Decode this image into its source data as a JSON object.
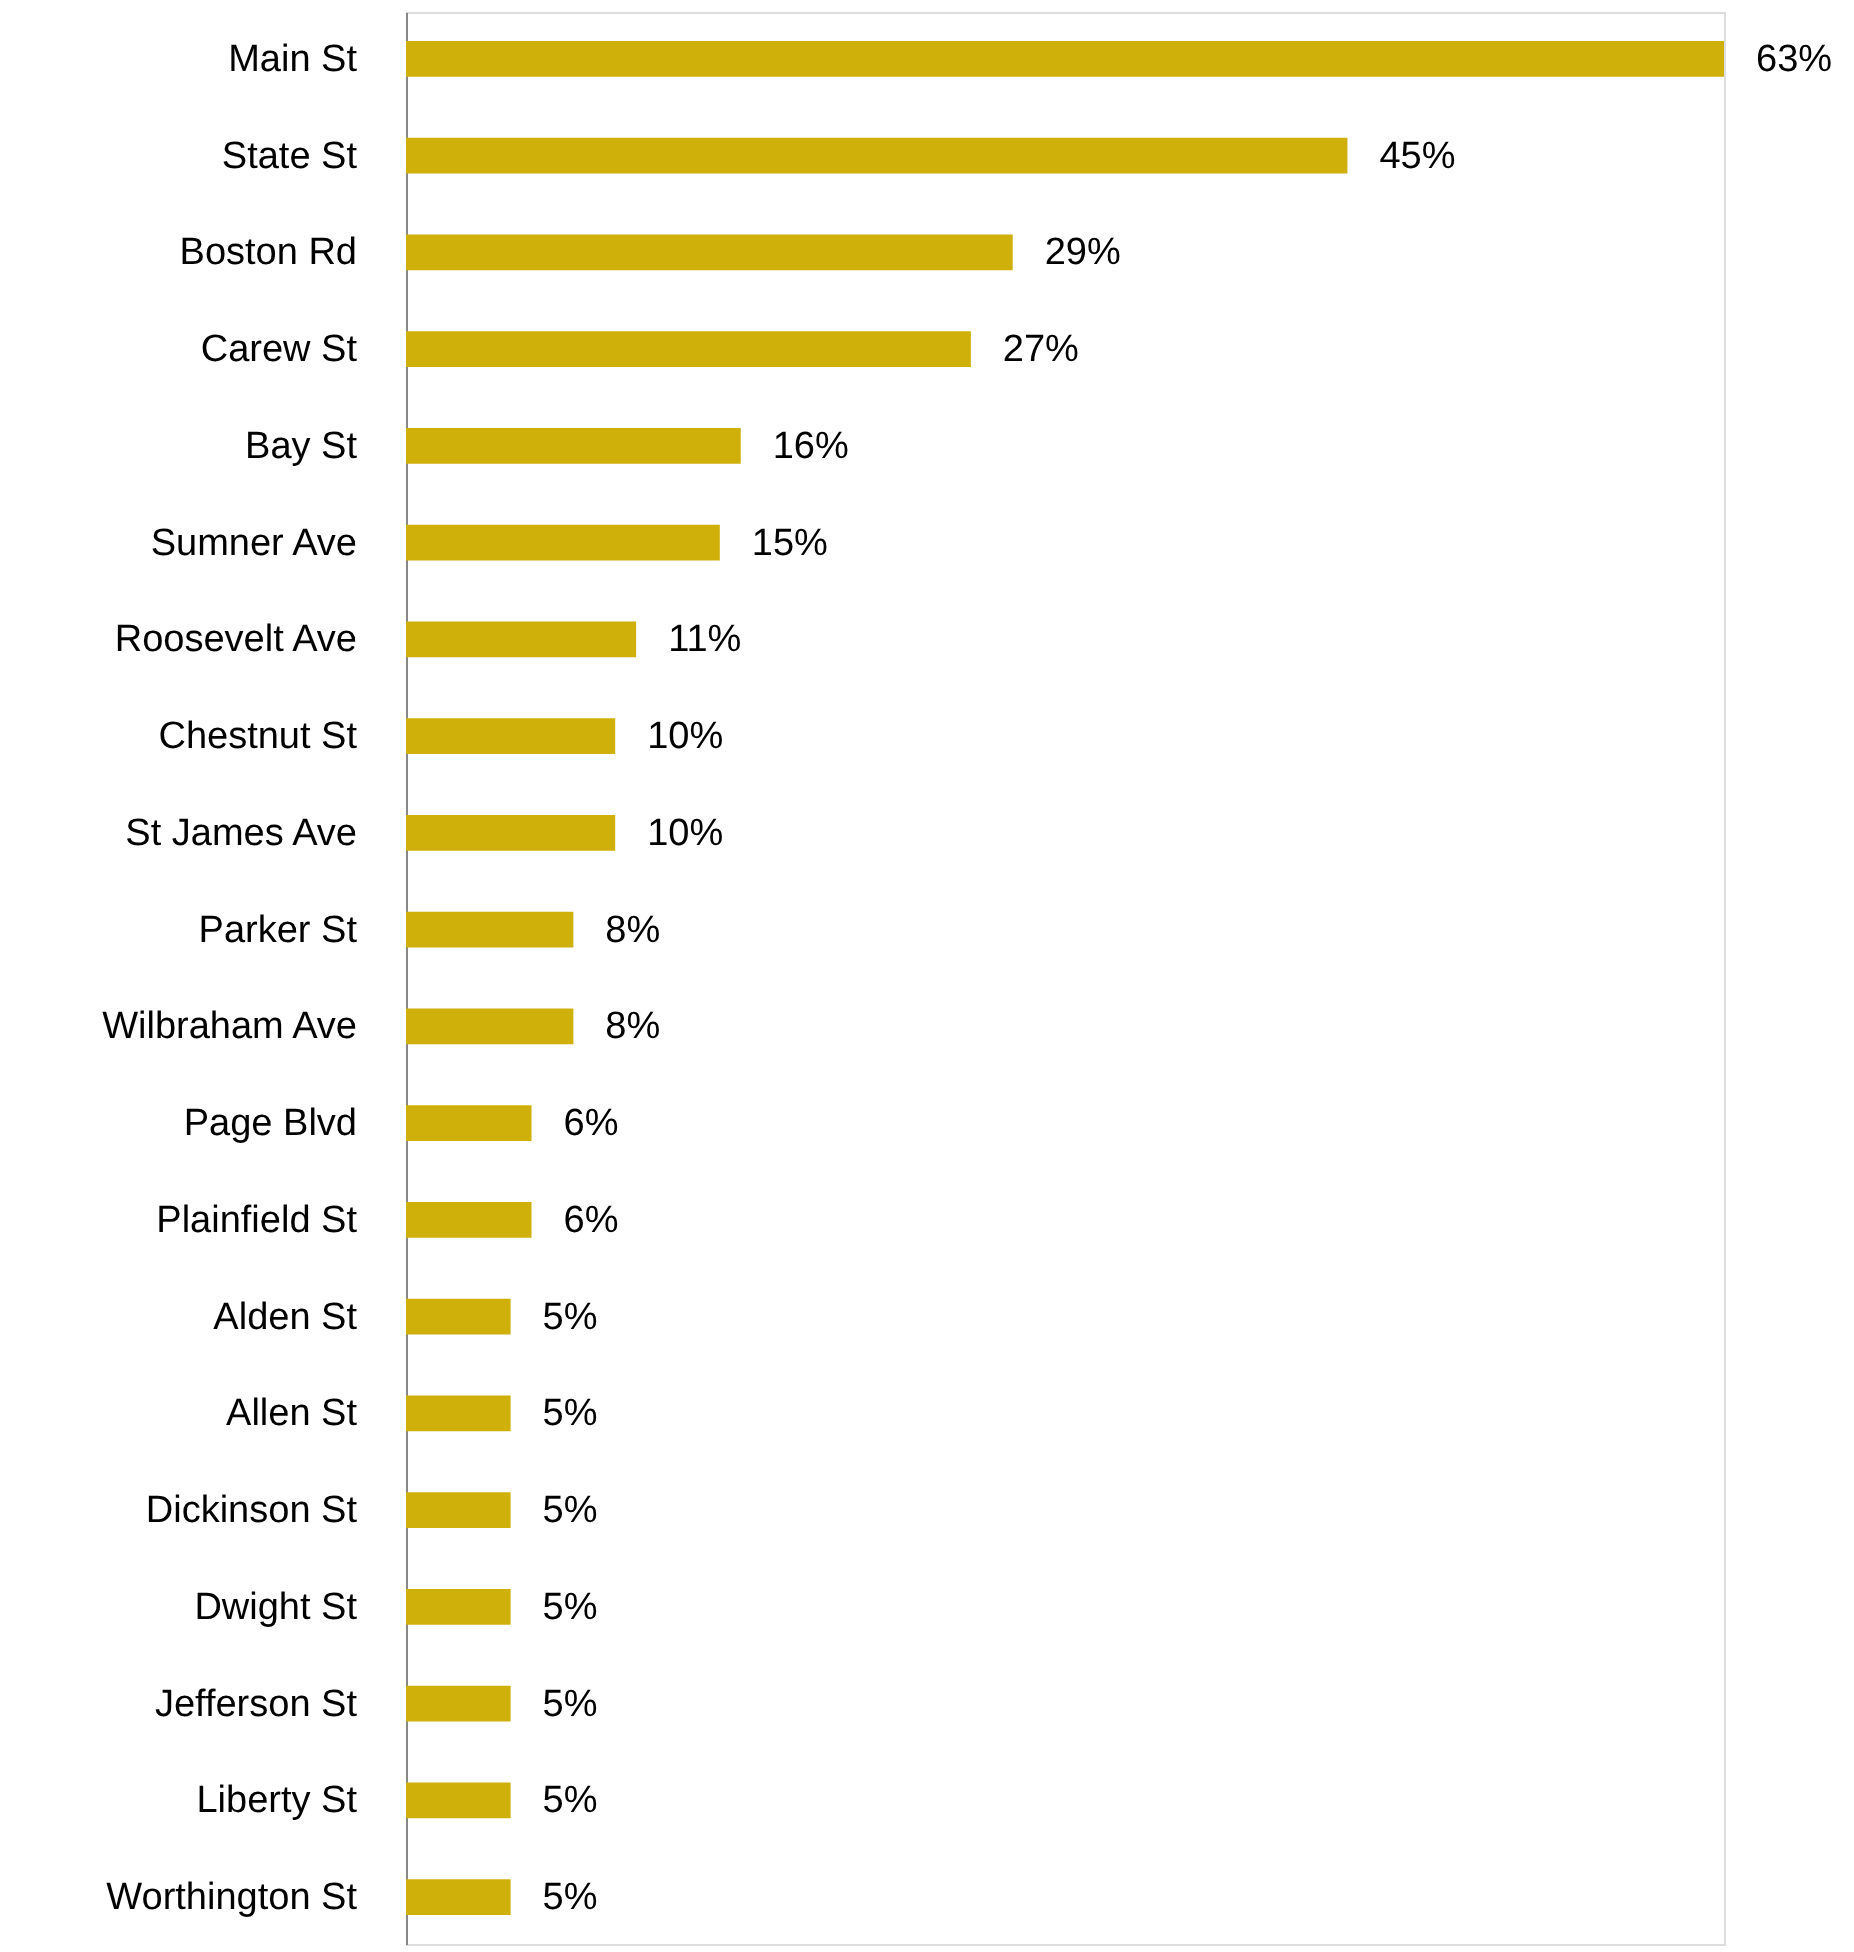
{
  "chart_data": {
    "type": "bar",
    "orientation": "horizontal",
    "categories": [
      "Main St",
      "State St",
      "Boston Rd",
      "Carew St",
      "Bay St",
      "Sumner Ave",
      "Roosevelt Ave",
      "Chestnut St",
      "St James Ave",
      "Parker St",
      "Wilbraham Ave",
      "Page Blvd",
      "Plainfield St",
      "Alden St",
      "Allen St",
      "Dickinson St",
      "Dwight St",
      "Jefferson St",
      "Liberty St",
      "Worthington St"
    ],
    "values": [
      63,
      45,
      29,
      27,
      16,
      15,
      11,
      10,
      10,
      8,
      8,
      6,
      6,
      5,
      5,
      5,
      5,
      5,
      5,
      5
    ],
    "value_labels": [
      "63%",
      "45%",
      "29%",
      "27%",
      "16%",
      "15%",
      "11%",
      "10%",
      "10%",
      "8%",
      "8%",
      "6%",
      "6%",
      "5%",
      "5%",
      "5%",
      "5%",
      "5%",
      "5%",
      "5%"
    ],
    "color": "#cfb00a",
    "grid": false
  }
}
